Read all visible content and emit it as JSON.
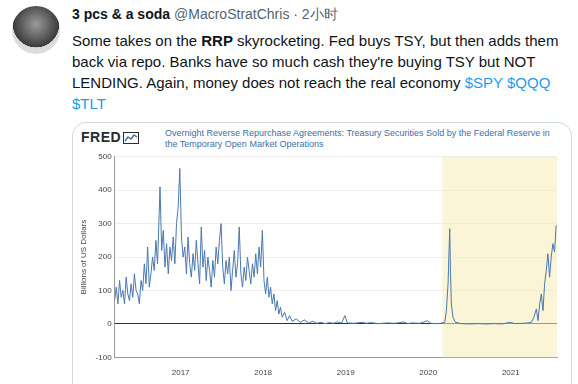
{
  "tweet": {
    "name": "3 pcs & a soda",
    "meta": "@MacroStratChris · 2小时",
    "segments": [
      {
        "text": "Some takes on the "
      },
      {
        "text": "RRP",
        "bold": true
      },
      {
        "text": " skyrocketing. Fed buys TSY, but then adds them back via repo. Banks have so much cash they're buying TSY but NOT LENDING. Again, money does not reach the real economy "
      },
      {
        "text": "$SPY",
        "link": true
      },
      {
        "text": " "
      },
      {
        "text": "$QQQ",
        "link": true
      },
      {
        "text": " "
      },
      {
        "text": "$TLT",
        "link": true
      }
    ]
  },
  "chart_data": {
    "type": "line",
    "logo": "FRED",
    "title": "Overnight Reverse Repurchase Agreements: Treasury Securities Sold by the Federal Reserve in the Temporary Open Market Operations",
    "ylabel": "Billions of US Dollars",
    "color": "#4a78b0",
    "grid": true,
    "xlim": [
      2016.2,
      2021.56
    ],
    "xticks": [
      2017,
      2018,
      2019,
      2020,
      2021
    ],
    "ylim": [
      -100,
      500
    ],
    "yticks": [
      -100,
      0,
      100,
      200,
      300,
      400,
      500
    ],
    "shaded": [
      2020.17,
      2021.56
    ],
    "x": [
      2016.2,
      2016.22,
      2016.24,
      2016.26,
      2016.28,
      2016.3,
      2016.32,
      2016.34,
      2016.36,
      2016.38,
      2016.4,
      2016.42,
      2016.44,
      2016.46,
      2016.48,
      2016.5,
      2016.52,
      2016.54,
      2016.56,
      2016.58,
      2016.6,
      2016.62,
      2016.64,
      2016.66,
      2016.68,
      2016.7,
      2016.72,
      2016.74,
      2016.75,
      2016.77,
      2016.79,
      2016.81,
      2016.83,
      2016.85,
      2016.87,
      2016.89,
      2016.91,
      2016.93,
      2016.95,
      2016.97,
      2016.99,
      2017.01,
      2017.03,
      2017.05,
      2017.07,
      2017.09,
      2017.11,
      2017.13,
      2017.15,
      2017.17,
      2017.19,
      2017.21,
      2017.23,
      2017.25,
      2017.27,
      2017.29,
      2017.31,
      2017.33,
      2017.35,
      2017.37,
      2017.39,
      2017.41,
      2017.43,
      2017.45,
      2017.47,
      2017.49,
      2017.51,
      2017.53,
      2017.55,
      2017.57,
      2017.59,
      2017.61,
      2017.63,
      2017.65,
      2017.67,
      2017.69,
      2017.71,
      2017.73,
      2017.75,
      2017.77,
      2017.79,
      2017.81,
      2017.83,
      2017.85,
      2017.87,
      2017.89,
      2017.91,
      2017.93,
      2017.95,
      2017.97,
      2017.99,
      2018.01,
      2018.03,
      2018.05,
      2018.07,
      2018.09,
      2018.11,
      2018.13,
      2018.15,
      2018.17,
      2018.19,
      2018.21,
      2018.23,
      2018.26,
      2018.29,
      2018.32,
      2018.35,
      2018.4,
      2018.45,
      2018.5,
      2018.55,
      2018.6,
      2018.65,
      2018.7,
      2018.75,
      2018.8,
      2018.85,
      2018.9,
      2018.95,
      2018.99,
      2019.02,
      2019.1,
      2019.2,
      2019.25,
      2019.3,
      2019.4,
      2019.5,
      2019.6,
      2019.7,
      2019.75,
      2019.8,
      2019.9,
      2019.99,
      2020.03,
      2020.1,
      2020.15,
      2020.2,
      2020.22,
      2020.24,
      2020.26,
      2020.27,
      2020.28,
      2020.3,
      2020.33,
      2020.4,
      2020.5,
      2020.6,
      2020.7,
      2020.8,
      2020.9,
      2020.99,
      2021.05,
      2021.15,
      2021.2,
      2021.25,
      2021.28,
      2021.31,
      2021.33,
      2021.35,
      2021.37,
      2021.39,
      2021.41,
      2021.43,
      2021.45,
      2021.47,
      2021.49,
      2021.51,
      2021.53,
      2021.55
    ],
    "values": [
      70,
      110,
      60,
      130,
      80,
      100,
      60,
      140,
      90,
      70,
      120,
      80,
      150,
      100,
      90,
      60,
      130,
      100,
      180,
      120,
      230,
      110,
      150,
      200,
      160,
      250,
      180,
      330,
      410,
      220,
      280,
      170,
      240,
      150,
      230,
      190,
      260,
      180,
      300,
      350,
      465,
      260,
      200,
      230,
      150,
      260,
      180,
      140,
      210,
      160,
      250,
      180,
      120,
      290,
      170,
      220,
      130,
      200,
      160,
      110,
      190,
      140,
      230,
      180,
      250,
      300,
      170,
      120,
      190,
      150,
      200,
      100,
      160,
      220,
      140,
      180,
      290,
      150,
      110,
      170,
      130,
      200,
      160,
      120,
      180,
      140,
      210,
      150,
      230,
      170,
      280,
      130,
      90,
      140,
      80,
      110,
      60,
      90,
      40,
      70,
      30,
      50,
      20,
      35,
      10,
      25,
      8,
      15,
      5,
      12,
      3,
      8,
      2,
      5,
      1,
      4,
      2,
      6,
      3,
      25,
      3,
      2,
      5,
      2,
      4,
      1,
      3,
      2,
      6,
      1,
      3,
      2,
      10,
      2,
      1,
      2,
      5,
      40,
      120,
      285,
      150,
      60,
      20,
      5,
      1,
      0,
      1,
      0,
      1,
      0,
      5,
      1,
      2,
      3,
      5,
      20,
      45,
      10,
      60,
      90,
      40,
      120,
      160,
      210,
      140,
      200,
      240,
      215,
      295
    ]
  }
}
